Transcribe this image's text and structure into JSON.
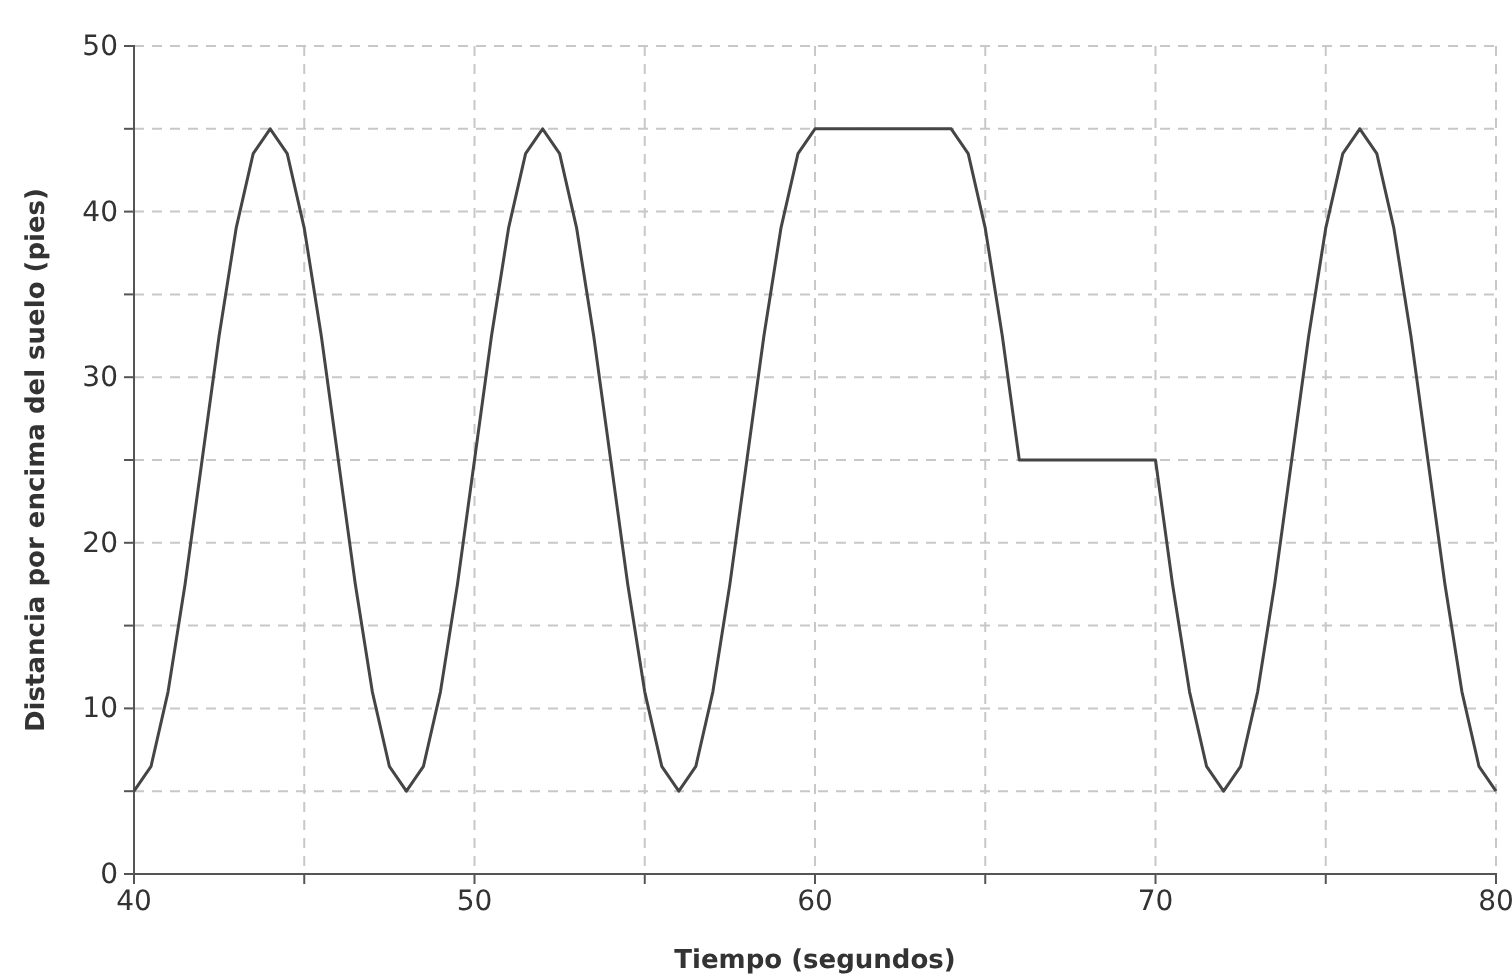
{
  "chart_data": {
    "type": "line",
    "xlabel": "Tiempo (segundos)",
    "ylabel": "Distancia por encima del suelo (pies)",
    "xlim": [
      40,
      80
    ],
    "ylim": [
      0,
      50
    ],
    "xticks": [
      40,
      {
        "value": 45,
        "label": null
      },
      50,
      {
        "value": 55,
        "label": null
      },
      60,
      {
        "value": 65,
        "label": null
      },
      70,
      {
        "value": 75,
        "label": null
      },
      80
    ],
    "yticks": [
      0,
      {
        "value": 5,
        "label": null
      },
      10,
      {
        "value": 15,
        "label": null
      },
      20,
      {
        "value": 25,
        "label": null
      },
      30,
      {
        "value": 35,
        "label": null
      },
      40,
      {
        "value": 45,
        "label": null
      },
      50
    ],
    "grid": true,
    "line_style": "solid",
    "marker": "none",
    "series": [
      {
        "color": "#454545",
        "x": [
          40,
          40.5,
          41,
          41.5,
          42,
          42.5,
          43,
          43.5,
          44,
          44.5,
          45,
          45.5,
          46,
          46.5,
          47,
          47.5,
          48,
          48.5,
          49,
          49.5,
          50,
          50.5,
          51,
          51.5,
          52,
          52.5,
          53,
          53.5,
          54,
          54.5,
          55,
          55.5,
          56,
          56.5,
          57,
          57.5,
          58,
          58.5,
          59,
          59.5,
          60,
          64,
          64.5,
          65,
          65.5,
          66,
          70,
          70.5,
          71,
          71.5,
          72,
          72.5,
          73,
          73.5,
          74,
          74.5,
          75,
          75.5,
          76,
          76.5,
          77,
          77.5,
          78,
          78.5,
          79,
          79.5,
          80
        ],
        "values": [
          5,
          6.5,
          11,
          17.5,
          25,
          32.5,
          39,
          43.5,
          45,
          43.5,
          39,
          32.5,
          25,
          17.5,
          11,
          6.5,
          5,
          6.5,
          11,
          17.5,
          25,
          32.5,
          39,
          43.5,
          45,
          43.5,
          39,
          32.5,
          25,
          17.5,
          11,
          6.5,
          5,
          6.5,
          11,
          17.5,
          25,
          32.5,
          39,
          43.5,
          45,
          45,
          43.5,
          39,
          32.5,
          25,
          25,
          17.5,
          11,
          6.5,
          5,
          6.5,
          11,
          17.5,
          25,
          32.5,
          39,
          43.5,
          45,
          43.5,
          39,
          32.5,
          25,
          17.5,
          11,
          6.5,
          5
        ]
      }
    ]
  }
}
